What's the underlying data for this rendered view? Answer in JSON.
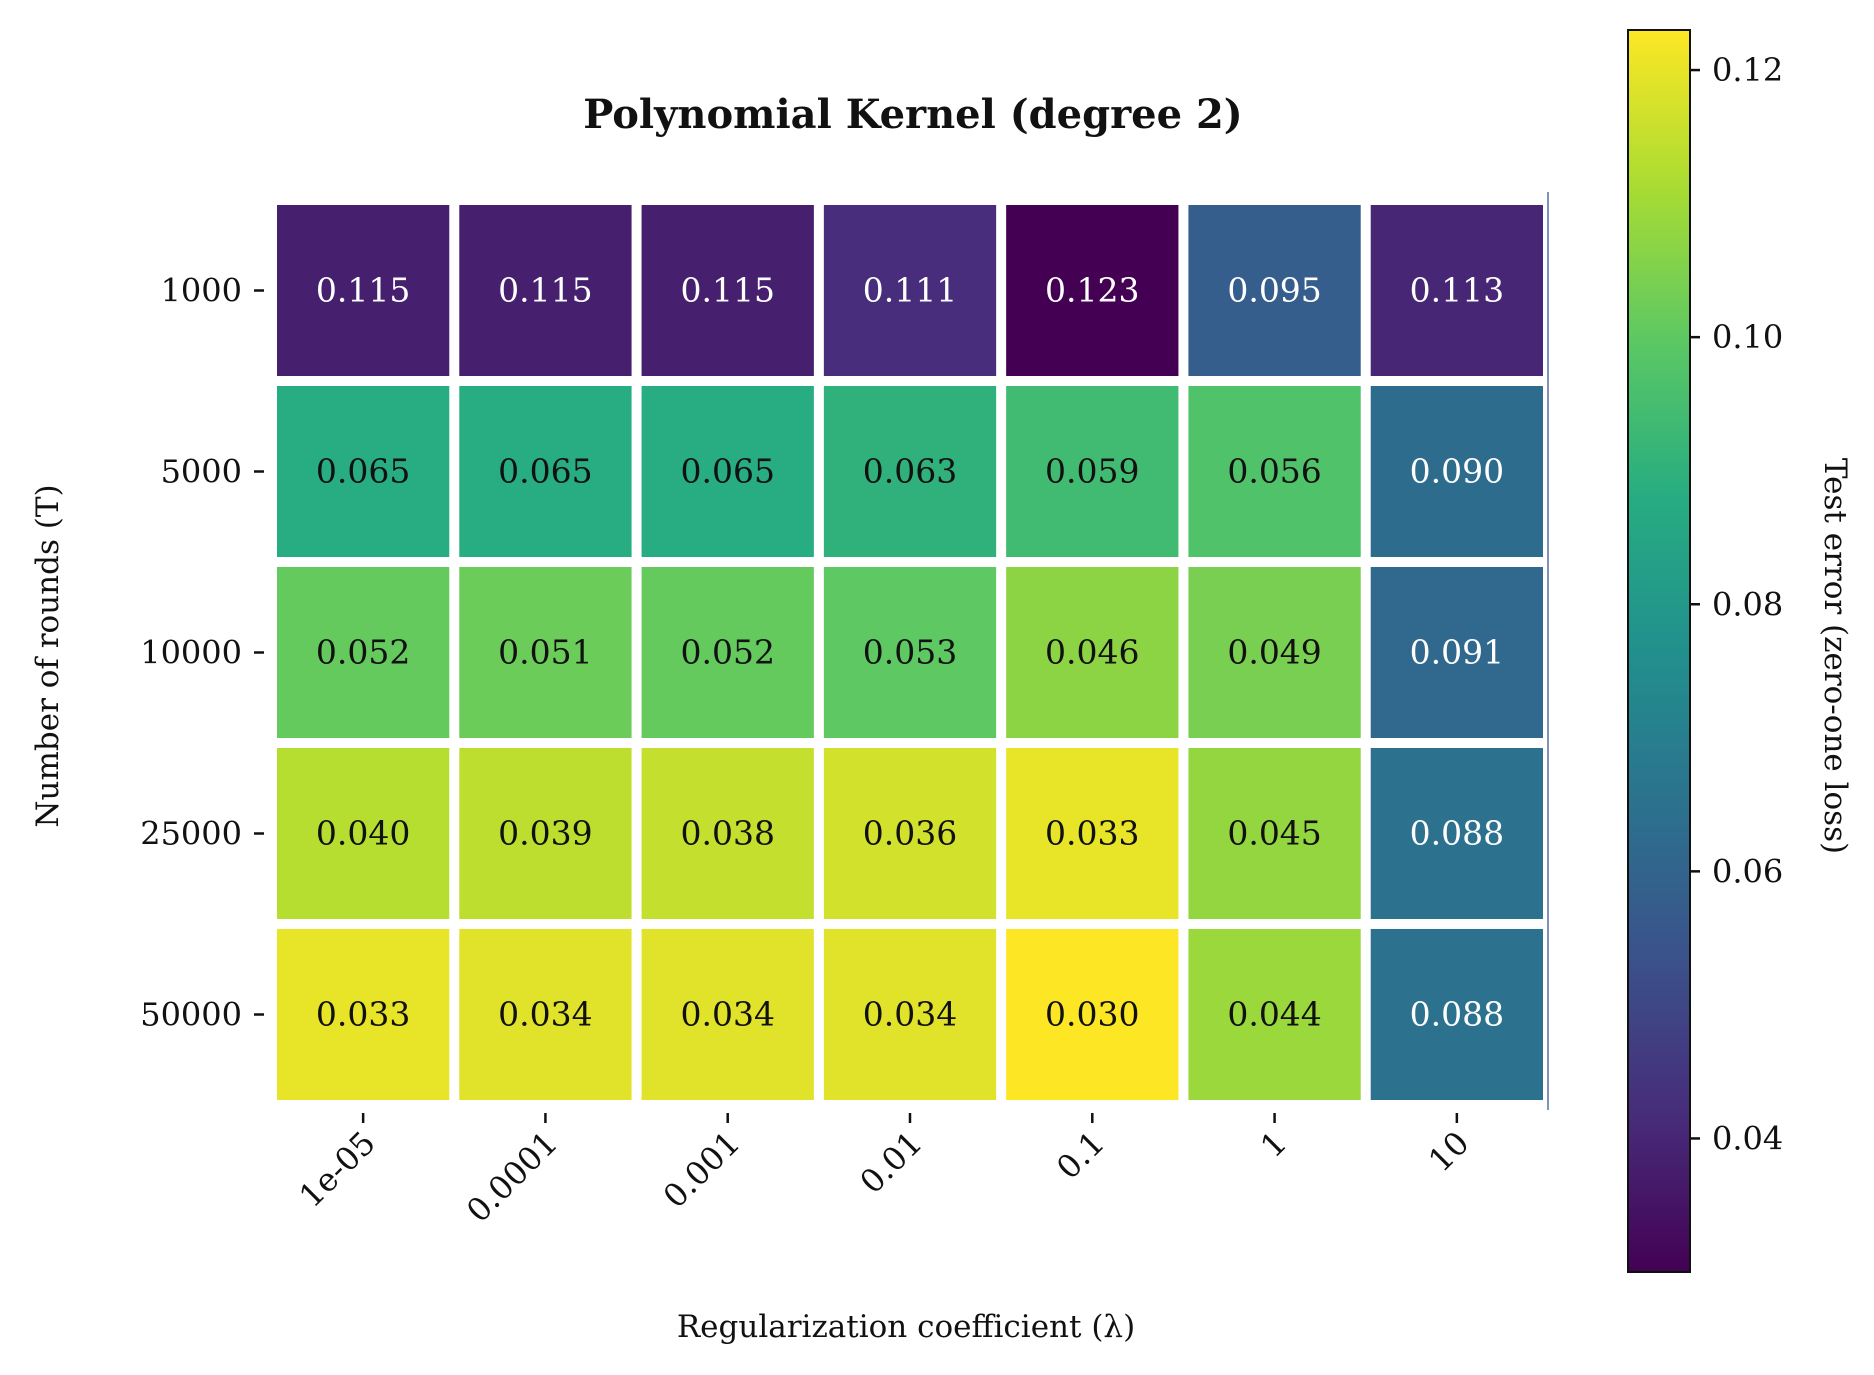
{
  "chart_data": {
    "type": "heatmap",
    "title": "Polynomial Kernel (degree 2)",
    "xlabel": "Regularization coefficient (λ)",
    "ylabel": "Number of rounds (T)",
    "x_categories": [
      "1e-05",
      "0.0001",
      "0.001",
      "0.01",
      "0.1",
      "1",
      "10"
    ],
    "y_categories": [
      "1000",
      "5000",
      "10000",
      "25000",
      "50000"
    ],
    "values": [
      [
        0.115,
        0.115,
        0.115,
        0.111,
        0.123,
        0.095,
        0.113
      ],
      [
        0.065,
        0.065,
        0.065,
        0.063,
        0.059,
        0.056,
        0.09
      ],
      [
        0.052,
        0.051,
        0.052,
        0.053,
        0.046,
        0.049,
        0.091
      ],
      [
        0.04,
        0.039,
        0.038,
        0.036,
        0.033,
        0.045,
        0.088
      ],
      [
        0.033,
        0.034,
        0.034,
        0.034,
        0.03,
        0.044,
        0.088
      ]
    ],
    "value_labels": [
      [
        "0.115",
        "0.115",
        "0.115",
        "0.111",
        "0.123",
        "0.095",
        "0.113"
      ],
      [
        "0.065",
        "0.065",
        "0.065",
        "0.063",
        "0.059",
        "0.056",
        "0.090"
      ],
      [
        "0.052",
        "0.051",
        "0.052",
        "0.053",
        "0.046",
        "0.049",
        "0.091"
      ],
      [
        "0.040",
        "0.039",
        "0.038",
        "0.036",
        "0.033",
        "0.045",
        "0.088"
      ],
      [
        "0.033",
        "0.034",
        "0.034",
        "0.034",
        "0.030",
        "0.044",
        "0.088"
      ]
    ],
    "colormap": "viridis (reversed)",
    "colorbar": {
      "label": "Test error (zero-one loss)",
      "range": [
        0.123,
        0.03
      ],
      "ticks": [
        0.04,
        0.06,
        0.08,
        0.1,
        0.12
      ],
      "tick_labels": [
        "0.04",
        "0.06",
        "0.08",
        "0.10",
        "0.12"
      ]
    },
    "cell_gap_color": "#ffffff",
    "grid": false
  }
}
